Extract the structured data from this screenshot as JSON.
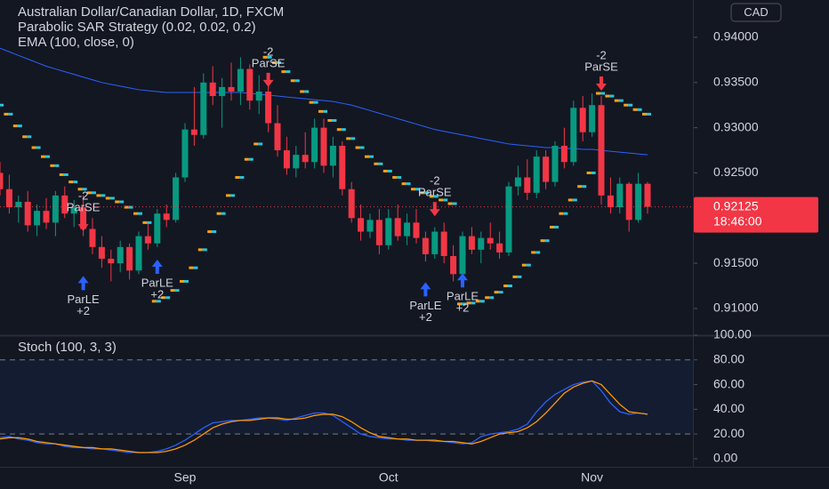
{
  "chart_data": [
    {
      "type": "candlestick",
      "title": "Australian Dollar/Canadian Dollar, 1D, FXCM",
      "currency": "CAD",
      "categories": [
        null,
        null,
        null,
        null,
        null,
        null,
        null,
        null,
        null,
        null,
        null,
        null,
        null,
        null,
        null,
        null,
        null,
        null,
        null,
        null,
        "Sep",
        null,
        null,
        null,
        null,
        null,
        null,
        null,
        null,
        null,
        null,
        null,
        null,
        null,
        null,
        null,
        null,
        null,
        null,
        null,
        null,
        null,
        "Oct",
        null,
        null,
        null,
        null,
        null,
        null,
        null,
        null,
        null,
        null,
        null,
        null,
        null,
        null,
        null,
        null,
        null,
        null,
        null,
        null,
        null,
        "Nov",
        null,
        null,
        null,
        null,
        null,
        null
      ],
      "open": [
        0.925,
        0.9232,
        0.9212,
        0.9218,
        0.9192,
        0.9208,
        0.9195,
        0.9225,
        0.9205,
        0.9212,
        0.9188,
        0.9168,
        0.9155,
        0.915,
        0.9168,
        0.9142,
        0.918,
        0.9172,
        0.9205,
        0.9198,
        0.9245,
        0.9298,
        0.9292,
        0.935,
        0.9335,
        0.9345,
        0.934,
        0.9365,
        0.933,
        0.934,
        0.9305,
        0.9275,
        0.9255,
        0.927,
        0.9262,
        0.93,
        0.9258,
        0.928,
        0.9232,
        0.92,
        0.9185,
        0.9198,
        0.917,
        0.92,
        0.918,
        0.9195,
        0.9178,
        0.916,
        0.9185,
        0.9158,
        0.9138,
        0.918,
        0.9165,
        0.9178,
        0.9172,
        0.9162,
        0.9235,
        0.9245,
        0.9228,
        0.9268,
        0.924,
        0.928,
        0.9262,
        0.9322,
        0.9295,
        0.9325,
        0.9225,
        0.9212,
        0.9238,
        0.9198,
        0.9238
      ],
      "high": [
        0.9262,
        0.9248,
        0.9225,
        0.923,
        0.9215,
        0.9222,
        0.923,
        0.9235,
        0.922,
        0.9225,
        0.92,
        0.918,
        0.9165,
        0.9175,
        0.9172,
        0.9185,
        0.9195,
        0.921,
        0.9215,
        0.925,
        0.9305,
        0.9345,
        0.936,
        0.9368,
        0.9355,
        0.9372,
        0.9378,
        0.937,
        0.9358,
        0.9352,
        0.9325,
        0.929,
        0.928,
        0.9295,
        0.931,
        0.931,
        0.929,
        0.9285,
        0.924,
        0.9215,
        0.9205,
        0.921,
        0.921,
        0.9215,
        0.9205,
        0.921,
        0.9185,
        0.919,
        0.9195,
        0.917,
        0.9185,
        0.919,
        0.9185,
        0.9195,
        0.9185,
        0.924,
        0.9258,
        0.9265,
        0.9275,
        0.9275,
        0.9285,
        0.93,
        0.933,
        0.9335,
        0.9338,
        0.9335,
        0.9245,
        0.9245,
        0.924,
        0.925,
        0.924
      ],
      "low": [
        0.9225,
        0.9205,
        0.9195,
        0.9185,
        0.918,
        0.9188,
        0.918,
        0.92,
        0.919,
        0.918,
        0.916,
        0.9145,
        0.913,
        0.914,
        0.9132,
        0.9138,
        0.9165,
        0.9168,
        0.919,
        0.9195,
        0.924,
        0.928,
        0.9288,
        0.9325,
        0.93,
        0.933,
        0.9325,
        0.932,
        0.9315,
        0.9295,
        0.9268,
        0.9248,
        0.9245,
        0.9255,
        0.9255,
        0.925,
        0.9245,
        0.9225,
        0.9195,
        0.9175,
        0.9178,
        0.916,
        0.9165,
        0.9175,
        0.917,
        0.9172,
        0.9152,
        0.9155,
        0.915,
        0.913,
        0.9135,
        0.916,
        0.915,
        0.9165,
        0.9155,
        0.9158,
        0.9225,
        0.922,
        0.9222,
        0.9232,
        0.9235,
        0.9255,
        0.9258,
        0.9285,
        0.929,
        0.9215,
        0.9205,
        0.9205,
        0.9185,
        0.9195,
        0.9205
      ],
      "close": [
        0.9232,
        0.9212,
        0.9218,
        0.9192,
        0.9208,
        0.9195,
        0.9225,
        0.9205,
        0.9212,
        0.9188,
        0.9168,
        0.9155,
        0.915,
        0.9168,
        0.9142,
        0.918,
        0.9172,
        0.9205,
        0.9198,
        0.9245,
        0.9298,
        0.9292,
        0.935,
        0.9335,
        0.9345,
        0.934,
        0.9365,
        0.933,
        0.934,
        0.9305,
        0.9275,
        0.9255,
        0.927,
        0.9262,
        0.93,
        0.9258,
        0.928,
        0.9232,
        0.92,
        0.9185,
        0.9198,
        0.917,
        0.92,
        0.918,
        0.9195,
        0.9178,
        0.916,
        0.9185,
        0.9158,
        0.9138,
        0.918,
        0.9165,
        0.9178,
        0.9172,
        0.9162,
        0.9235,
        0.9245,
        0.9228,
        0.9268,
        0.924,
        0.928,
        0.9262,
        0.9322,
        0.9295,
        0.9325,
        0.9225,
        0.9212,
        0.9238,
        0.9198,
        0.9238,
        0.92125
      ],
      "up_color": "#089981",
      "down_color": "#f23645",
      "ylim": [
        0.90724,
        0.94413
      ],
      "yticks": [
        {
          "value": 0.91,
          "label": "0.91000"
        },
        {
          "value": 0.915,
          "label": "0.91500"
        },
        {
          "value": 0.925,
          "label": "0.92500"
        },
        {
          "value": 0.93,
          "label": "0.93000"
        },
        {
          "value": 0.935,
          "label": "0.93500"
        },
        {
          "value": 0.94,
          "label": "0.94000"
        }
      ],
      "sar": {
        "name": "Parabolic SAR Strategy (0.02, 0.02, 0.2)",
        "colors": [
          "#f7a21b",
          "#26c6da"
        ],
        "values": [
          0.9325,
          0.9315,
          0.9302,
          0.929,
          0.9278,
          0.9268,
          0.9258,
          0.9248,
          0.924,
          0.9232,
          0.9228,
          0.9225,
          0.9222,
          0.9218,
          0.9212,
          0.9205,
          0.9195,
          0.9108,
          0.9112,
          0.912,
          0.913,
          0.9145,
          0.9165,
          0.9185,
          0.9205,
          0.9225,
          0.9245,
          0.9265,
          0.9282,
          0.9378,
          0.9372,
          0.9362,
          0.9352,
          0.934,
          0.9328,
          0.9318,
          0.9308,
          0.9298,
          0.9288,
          0.9278,
          0.9268,
          0.926,
          0.9252,
          0.9245,
          0.9238,
          0.9232,
          0.9228,
          0.9224,
          0.922,
          0.9216,
          0.9105,
          0.9106,
          0.9108,
          0.9112,
          0.9118,
          0.9125,
          0.9135,
          0.9148,
          0.9162,
          0.9175,
          0.919,
          0.9205,
          0.922,
          0.9235,
          0.925,
          0.9338,
          0.9335,
          0.933,
          0.9325,
          0.932,
          0.9315
        ]
      },
      "series": [
        {
          "name": "EMA (100, close, 0)",
          "color": "#2962ff",
          "values": [
            0.9388,
            0.9384,
            0.938,
            0.9376,
            0.9372,
            0.9368,
            0.9365,
            0.9362,
            0.9359,
            0.9356,
            0.9353,
            0.935,
            0.9348,
            0.9346,
            0.9344,
            0.9342,
            0.9341,
            0.934,
            0.9339,
            0.9339,
            0.9339,
            0.9339,
            0.9339,
            0.9339,
            0.9339,
            0.9339,
            0.9339,
            0.9338,
            0.9337,
            0.9336,
            0.9335,
            0.9334,
            0.9333,
            0.9332,
            0.9331,
            0.933,
            0.9329,
            0.9327,
            0.9325,
            0.9322,
            0.9319,
            0.9316,
            0.9313,
            0.931,
            0.9307,
            0.9304,
            0.9301,
            0.9298,
            0.9296,
            0.9294,
            0.9292,
            0.929,
            0.9288,
            0.9286,
            0.9284,
            0.9282,
            0.9281,
            0.928,
            0.9279,
            0.9278,
            0.9278,
            0.9277,
            0.9277,
            0.9276,
            0.9276,
            0.9275,
            0.9274,
            0.9273,
            0.9272,
            0.9271,
            0.927
          ]
        }
      ],
      "last_price": 0.92125,
      "countdown": "18:46:00",
      "signals": [
        {
          "bar": 9,
          "price": 0.91835,
          "label": "ParSE",
          "qty": "-2",
          "color": "#f23645"
        },
        {
          "bar": 9,
          "price": 0.9138,
          "label": "ParLE",
          "qty": "+2",
          "color": "#2962ff"
        },
        {
          "bar": 17,
          "price": 0.9156,
          "label": "ParLE",
          "qty": "+2",
          "color": "#2962ff"
        },
        {
          "bar": 29,
          "price": 0.9343,
          "label": "ParSE",
          "qty": "-2",
          "color": "#f23645"
        },
        {
          "bar": 47,
          "price": 0.92,
          "label": "ParSE",
          "qty": "-2",
          "color": "#f23645"
        },
        {
          "bar": 46,
          "price": 0.9131,
          "label": "ParLE",
          "qty": "+2",
          "color": "#2962ff"
        },
        {
          "bar": 50,
          "price": 0.9141,
          "label": "ParLE",
          "qty": "+2",
          "color": "#2962ff"
        },
        {
          "bar": 65,
          "price": 0.9339,
          "label": "ParSE",
          "qty": "-2",
          "color": "#f23645"
        }
      ]
    },
    {
      "type": "line",
      "title": "Stoch (100, 3, 3)",
      "ylim": [
        -6.5,
        97.8
      ],
      "yticks": [
        {
          "value": 0,
          "label": "0.00"
        },
        {
          "value": 20,
          "label": "20.00"
        },
        {
          "value": 40,
          "label": "40.00"
        },
        {
          "value": 60,
          "label": "60.00"
        },
        {
          "value": 80,
          "label": "80.00"
        },
        {
          "value": 100,
          "label": "100.00"
        }
      ],
      "bands": [
        20,
        80
      ],
      "band_color": "#2962ff",
      "series": [
        {
          "color": "#2962ff",
          "values": [
            17,
            18,
            16,
            15,
            13,
            12,
            12,
            10,
            9,
            9,
            8,
            8,
            7,
            6,
            5,
            5,
            5,
            6,
            8,
            11,
            15,
            20,
            25,
            29,
            30,
            31,
            31,
            32,
            33,
            33,
            32,
            31,
            33,
            35,
            37,
            37,
            35,
            30,
            25,
            20,
            18,
            17,
            16,
            16,
            15,
            15,
            15,
            14,
            14,
            13,
            12,
            13,
            18,
            20,
            21,
            22,
            24,
            28,
            38,
            46,
            52,
            56,
            60,
            62,
            63,
            55,
            45,
            38,
            36,
            37,
            36
          ]
        },
        {
          "color": "#ff9800",
          "values": [
            16,
            17,
            17,
            16,
            14,
            13,
            12,
            11,
            10,
            9,
            9,
            8,
            8,
            7,
            6,
            5,
            5,
            5,
            6,
            8,
            11,
            15,
            20,
            25,
            28,
            30,
            31,
            31,
            32,
            33,
            33,
            32,
            32,
            33,
            35,
            36,
            36,
            34,
            30,
            25,
            21,
            18,
            17,
            16,
            16,
            15,
            15,
            15,
            14,
            14,
            13,
            12,
            14,
            17,
            20,
            21,
            22,
            25,
            30,
            37,
            45,
            53,
            58,
            61,
            63,
            60,
            52,
            44,
            38,
            37,
            36
          ]
        }
      ]
    }
  ]
}
